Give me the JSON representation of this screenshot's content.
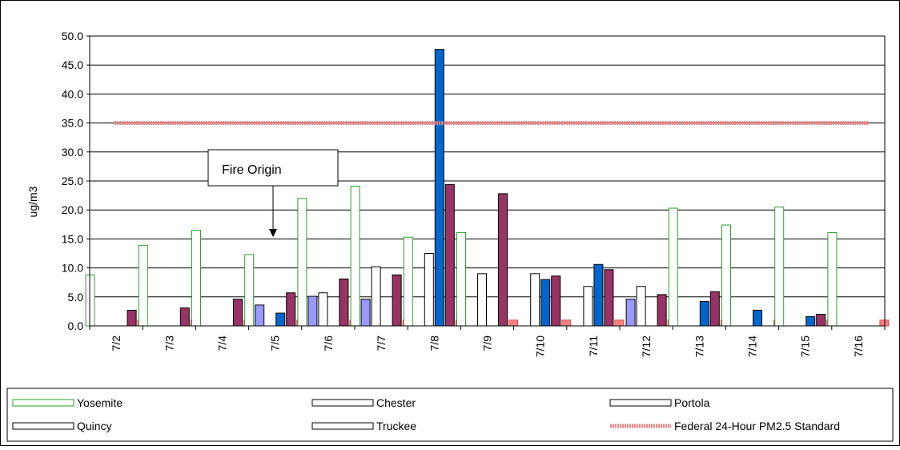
{
  "chart_data": {
    "type": "bar",
    "title": "",
    "xlabel": "",
    "ylabel": "ug/m3",
    "ylim": [
      0,
      50
    ],
    "yticks": [
      "0.0",
      "5.0",
      "10.0",
      "15.0",
      "20.0",
      "25.0",
      "30.0",
      "35.0",
      "40.0",
      "45.0",
      "50.0"
    ],
    "grid": true,
    "legend_position": "bottom",
    "categories": [
      "7/2",
      "7/3",
      "7/4",
      "7/5",
      "7/6",
      "7/7",
      "7/8",
      "7/9",
      "7/10",
      "7/11",
      "7/12",
      "7/13",
      "7/14",
      "7/15",
      "7/16"
    ],
    "series": [
      {
        "name": "Yosemite",
        "fill": "#ffffff",
        "stroke": "#2e9e2e",
        "values": [
          8.8,
          13.9,
          16.5,
          12.3,
          22.0,
          24.1,
          15.3,
          16.1,
          null,
          null,
          null,
          20.3,
          17.4,
          20.5,
          16.1
        ]
      },
      {
        "name": "Quincy",
        "fill": "#9999ff",
        "stroke": "#000000",
        "values": [
          null,
          null,
          null,
          3.6,
          5.1,
          4.6,
          null,
          null,
          null,
          null,
          4.6,
          null,
          null,
          null,
          null
        ]
      },
      {
        "name": "Chester",
        "fill": "#ffffff",
        "stroke": "#000000",
        "values": [
          null,
          null,
          null,
          null,
          5.7,
          10.2,
          12.5,
          9.0,
          9.0,
          6.8,
          6.8,
          null,
          null,
          null,
          null
        ]
      },
      {
        "name": "Truckee",
        "fill": "#0066cc",
        "stroke": "#000000",
        "values": [
          null,
          null,
          null,
          2.2,
          null,
          null,
          47.7,
          null,
          8.0,
          10.6,
          null,
          4.2,
          2.7,
          1.6,
          null
        ]
      },
      {
        "name": "Portola",
        "fill": "#993366",
        "stroke": "#000000",
        "values": [
          2.7,
          3.1,
          4.6,
          5.7,
          8.1,
          8.8,
          24.4,
          22.8,
          8.6,
          9.7,
          5.4,
          5.9,
          null,
          2.0,
          null
        ]
      },
      {
        "name": "Federal 24-Hour PM2.5 Standard",
        "fill": "#ff8080",
        "stroke": "#d95050",
        "values": [
          1.0,
          1.0,
          1.0,
          1.0,
          1.0,
          1.0,
          1.0,
          1.0,
          1.0,
          1.0,
          1.0,
          1.0,
          1.0,
          1.0,
          1.0
        ]
      }
    ],
    "reference_line": {
      "name": "Federal 24-Hour PM2.5 Standard",
      "value": 35.0,
      "color": "#f08080"
    },
    "annotation": {
      "text": "Fire Origin",
      "category": "7/5"
    },
    "legend": [
      {
        "name": "Yosemite",
        "stroke": "#2e9e2e"
      },
      {
        "name": "Chester",
        "stroke": "#000000"
      },
      {
        "name": "Portola",
        "stroke": "#000000"
      },
      {
        "name": "Quincy",
        "stroke": "#000000"
      },
      {
        "name": "Truckee",
        "stroke": "#000000"
      },
      {
        "name": "Federal 24-Hour PM2.5 Standard",
        "stroke": "#f08080"
      }
    ]
  }
}
